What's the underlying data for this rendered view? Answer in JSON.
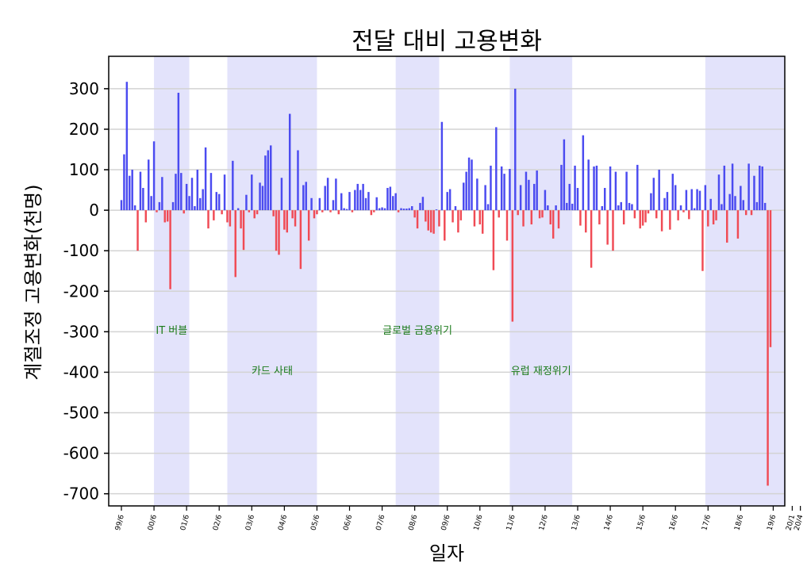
{
  "chart_data": {
    "type": "bar",
    "title": "전달 대비 고용변화",
    "xlabel": "일자",
    "ylabel": "계절조정 고용변화(천명)",
    "ylim": [
      -730,
      380
    ],
    "yticks": [
      300,
      200,
      100,
      0,
      -100,
      -200,
      -300,
      -400,
      -500,
      -600,
      -700
    ],
    "grid": true,
    "colors": {
      "positive": "#4b4bf0",
      "negative": "#f04b55",
      "shade": "#e3e3fb",
      "annotation": "#1a7a1a",
      "grid": "#d3d3d3"
    },
    "x_start": "1999-06",
    "x_end": "2020-04",
    "x_ticks": [
      {
        "label": "99/6",
        "month": 0
      },
      {
        "label": "00/6",
        "month": 12
      },
      {
        "label": "01/6",
        "month": 24
      },
      {
        "label": "02/6",
        "month": 36
      },
      {
        "label": "03/6",
        "month": 48
      },
      {
        "label": "04/6",
        "month": 60
      },
      {
        "label": "05/6",
        "month": 72
      },
      {
        "label": "06/6",
        "month": 84
      },
      {
        "label": "07/6",
        "month": 96
      },
      {
        "label": "08/6",
        "month": 108
      },
      {
        "label": "09/6",
        "month": 120
      },
      {
        "label": "10/6",
        "month": 132
      },
      {
        "label": "11/6",
        "month": 144
      },
      {
        "label": "12/6",
        "month": 156
      },
      {
        "label": "13/6",
        "month": 168
      },
      {
        "label": "14/6",
        "month": 180
      },
      {
        "label": "15/6",
        "month": 192
      },
      {
        "label": "16/6",
        "month": 204
      },
      {
        "label": "17/6",
        "month": 216
      },
      {
        "label": "18/6",
        "month": 228
      },
      {
        "label": "19/6",
        "month": 240
      },
      {
        "label": "20/1",
        "month": 247
      },
      {
        "label": "20/4",
        "month": 250
      }
    ],
    "shaded_periods": [
      {
        "from": 12,
        "to": 25
      },
      {
        "from": 39,
        "to": 72
      },
      {
        "from": 101,
        "to": 117
      },
      {
        "from": 143,
        "to": 166
      },
      {
        "from": 215,
        "to": 251
      }
    ],
    "annotations": [
      {
        "text": "IT 버블",
        "month": 18.5,
        "y": -305
      },
      {
        "text": "카드 사태",
        "month": 55.5,
        "y": -405
      },
      {
        "text": "글로벌 금융위기",
        "month": 109,
        "y": -305
      },
      {
        "text": "유럽 재정위기",
        "month": 154.5,
        "y": -405
      }
    ],
    "values": [
      25,
      138,
      317,
      85,
      100,
      12,
      -100,
      95,
      55,
      -30,
      125,
      35,
      170,
      -5,
      20,
      82,
      -30,
      -28,
      -195,
      20,
      90,
      290,
      92,
      -8,
      65,
      35,
      80,
      10,
      100,
      30,
      52,
      155,
      -45,
      92,
      -25,
      45,
      40,
      -10,
      88,
      -30,
      -40,
      122,
      -165,
      5,
      -45,
      -98,
      38,
      -5,
      88,
      -20,
      -10,
      68,
      60,
      135,
      148,
      160,
      -15,
      -100,
      -110,
      80,
      -48,
      -55,
      238,
      -20,
      -40,
      148,
      -145,
      62,
      70,
      -75,
      30,
      -20,
      -10,
      30,
      -5,
      60,
      80,
      -5,
      25,
      78,
      -10,
      42,
      5,
      3,
      45,
      -5,
      50,
      65,
      50,
      65,
      30,
      45,
      -12,
      -5,
      32,
      5,
      7,
      5,
      55,
      58,
      35,
      42,
      -5,
      5,
      4,
      4,
      5,
      10,
      -18,
      -45,
      18,
      33,
      -28,
      -50,
      -55,
      -58,
      2,
      -40,
      218,
      -75,
      45,
      52,
      -30,
      10,
      -55,
      -25,
      68,
      95,
      130,
      125,
      -40,
      78,
      -35,
      -58,
      62,
      15,
      110,
      -148,
      205,
      -18,
      108,
      90,
      -75,
      102,
      -275,
      300,
      -12,
      62,
      -40,
      95,
      75,
      -35,
      65,
      98,
      -20,
      -18,
      50,
      12,
      -35,
      -70,
      12,
      -45,
      112,
      175,
      18,
      65,
      16,
      110,
      55,
      -38,
      185,
      -55,
      125,
      -142,
      108,
      110,
      -35,
      10,
      55,
      -85,
      108,
      -100,
      95,
      12,
      20,
      -35,
      95,
      18,
      15,
      -20,
      112,
      -45,
      -38,
      -30,
      -8,
      42,
      80,
      -20,
      100,
      -52,
      30,
      45,
      -48,
      90,
      62,
      -25,
      12,
      -5,
      50,
      -22,
      52,
      5,
      52,
      48,
      -150,
      62,
      -40,
      28,
      -35,
      -25,
      88,
      15,
      110,
      -80,
      40,
      115,
      35,
      -70,
      60,
      25,
      -12,
      115,
      -12,
      85,
      20,
      110,
      108,
      18,
      -680,
      -338
    ]
  }
}
